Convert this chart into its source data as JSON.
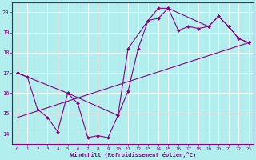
{
  "xlabel": "Windchill (Refroidissement éolien,°C)",
  "bg_color": "#b2eeee",
  "line_color": "#880088",
  "grid_color": "#ffffff",
  "ylim": [
    13.5,
    20.5
  ],
  "xlim": [
    -0.5,
    23.5
  ],
  "yticks": [
    14,
    15,
    16,
    17,
    18,
    19,
    20
  ],
  "xticks": [
    0,
    1,
    2,
    3,
    4,
    5,
    6,
    7,
    8,
    9,
    10,
    11,
    12,
    13,
    14,
    15,
    16,
    17,
    18,
    19,
    20,
    21,
    22,
    23
  ],
  "line1_x": [
    0,
    1,
    2,
    3,
    4,
    5,
    6,
    7,
    8,
    9,
    10,
    11,
    12,
    13,
    14,
    15,
    16,
    17,
    18,
    19,
    20,
    21,
    22,
    23
  ],
  "line1_y": [
    17.0,
    16.8,
    15.2,
    14.8,
    14.1,
    16.0,
    15.5,
    13.8,
    13.9,
    13.8,
    14.9,
    16.1,
    18.2,
    19.6,
    19.7,
    20.2,
    19.1,
    19.3,
    19.2,
    19.3,
    19.8,
    19.3,
    18.7,
    18.5
  ],
  "line2_x": [
    0,
    5,
    10,
    11,
    13,
    14,
    15,
    19,
    20,
    21,
    22,
    23
  ],
  "line2_y": [
    17.0,
    16.0,
    14.9,
    18.2,
    19.6,
    20.2,
    20.2,
    19.3,
    19.8,
    19.3,
    18.7,
    18.5
  ],
  "line3_x": [
    0,
    23
  ],
  "line3_y": [
    14.8,
    18.5
  ]
}
